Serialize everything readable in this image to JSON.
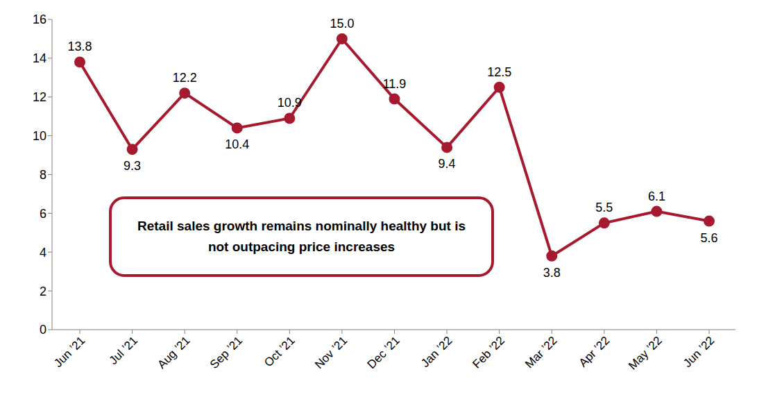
{
  "chart_data": {
    "type": "line",
    "annotation": "Retail sales growth remains nominally healthy but is not outpacing price increases",
    "categories": [
      "Jun ’21",
      "Jul ’21",
      "Aug ’21",
      "Sep ’21",
      "Oct ’21",
      "Nov ’21",
      "Dec ’21",
      "Jan ’22",
      "Feb ’22",
      "Mar ’22",
      "Apr ’22",
      "May ’22",
      "Jun ’22"
    ],
    "values": [
      13.8,
      9.3,
      12.2,
      10.4,
      10.9,
      15.0,
      11.9,
      9.4,
      12.5,
      3.8,
      5.5,
      6.1,
      5.6
    ],
    "value_labels": [
      "13.8",
      "9.3",
      "12.2",
      "10.4",
      "10.9",
      "15.0",
      "11.9",
      "9.4",
      "12.5",
      "3.8",
      "5.5",
      "6.1",
      "5.6"
    ],
    "color": "#a6192e",
    "ylim": [
      0,
      16
    ],
    "yticks": [
      0,
      2,
      4,
      6,
      8,
      10,
      12,
      14,
      16
    ],
    "grid": false,
    "data_labels": true,
    "marker": "circle"
  }
}
